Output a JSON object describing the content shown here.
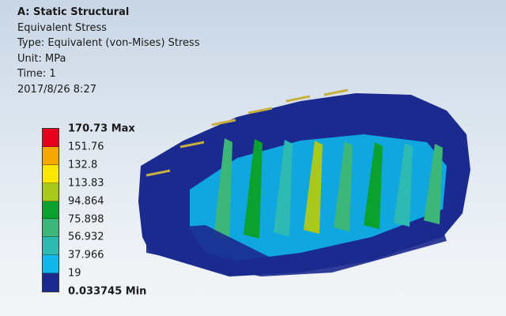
{
  "header": {
    "title": "A: Static Structural",
    "result": "Equivalent Stress",
    "type": "Type: Equivalent (von-Mises) Stress",
    "unit": "Unit: MPa",
    "time": "Time: 1",
    "date": "2017/8/26 8:27"
  },
  "legend": {
    "labels": [
      "170.73 Max",
      "151.76",
      "132.8",
      "113.83",
      "94.864",
      "75.898",
      "56.932",
      "37.966",
      "19",
      "0.033745 Min"
    ],
    "colors": [
      "#e6001e",
      "#f5a900",
      "#f8e800",
      "#a9c91d",
      "#0aa12e",
      "#3db679",
      "#2fb9b3",
      "#10b9ea",
      "#1b2a8f"
    ]
  }
}
